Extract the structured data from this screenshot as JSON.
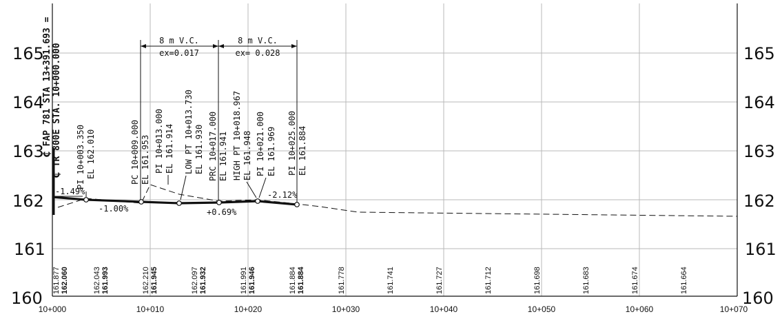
{
  "elevation_labels": [
    "160",
    "161",
    "162",
    "163",
    "164",
    "165"
  ],
  "station_labels": [
    "10+000",
    "10+010",
    "10+020",
    "10+030",
    "10+040",
    "10+050",
    "10+060",
    "10+070"
  ],
  "origin_labels": {
    "line1": "₵ FAP 781 STA 13+391.693 =",
    "line2": "₵ TR 800E STA. 10+000.000"
  },
  "vertical_curves": [
    {
      "id": "vc1",
      "length": "8 m V.C.",
      "ex": "ex=0.017"
    },
    {
      "id": "vc2",
      "length": "8 m V.C.",
      "ex": "ex= 0.028"
    }
  ],
  "grades": [
    "-1.49%",
    "-1.00%",
    "+0.69%",
    "-2.12%"
  ],
  "callouts": [
    {
      "id": "pi1",
      "lines": [
        "PI 10+003.350",
        "EL 162.010"
      ]
    },
    {
      "id": "pc",
      "lines": [
        "PC 10+009.000",
        "EL 161.953"
      ]
    },
    {
      "id": "pi2",
      "lines": [
        "PI 10+013.000",
        "EL 161.914"
      ]
    },
    {
      "id": "low",
      "lines": [
        "LOW PT 10+013.730",
        "EL 161.930"
      ]
    },
    {
      "id": "prc",
      "lines": [
        "PRC 10+017.000",
        "EL 161.941"
      ]
    },
    {
      "id": "high",
      "lines": [
        "HIGH PT 10+018.967",
        "EL 161.948"
      ]
    },
    {
      "id": "pi3",
      "lines": [
        "PI 10+021.000",
        "EL 161.969"
      ]
    },
    {
      "id": "pi4",
      "lines": [
        "PI 10+025.000",
        "EL 161.884"
      ]
    }
  ],
  "bottom_elevations": [
    {
      "ground": "161.877",
      "proposed": "162.060"
    },
    {
      "ground": "162.043",
      "proposed": "161.993"
    },
    {
      "ground": "162.210",
      "proposed": "161.945"
    },
    {
      "ground": "162.097",
      "proposed": "161.932"
    },
    {
      "ground": "161.991",
      "proposed": "161.946"
    },
    {
      "ground": "161.884",
      "proposed": "161.884"
    },
    {
      "ground": "161.778",
      "proposed": ""
    },
    {
      "ground": "161.741",
      "proposed": ""
    },
    {
      "ground": "161.727",
      "proposed": ""
    },
    {
      "ground": "161.712",
      "proposed": ""
    },
    {
      "ground": "161.698",
      "proposed": ""
    },
    {
      "ground": "161.683",
      "proposed": ""
    },
    {
      "ground": "161.674",
      "proposed": ""
    },
    {
      "ground": "161.664",
      "proposed": ""
    }
  ],
  "colors": {
    "grid": "#b8b8b8",
    "ink": "#111111"
  }
}
